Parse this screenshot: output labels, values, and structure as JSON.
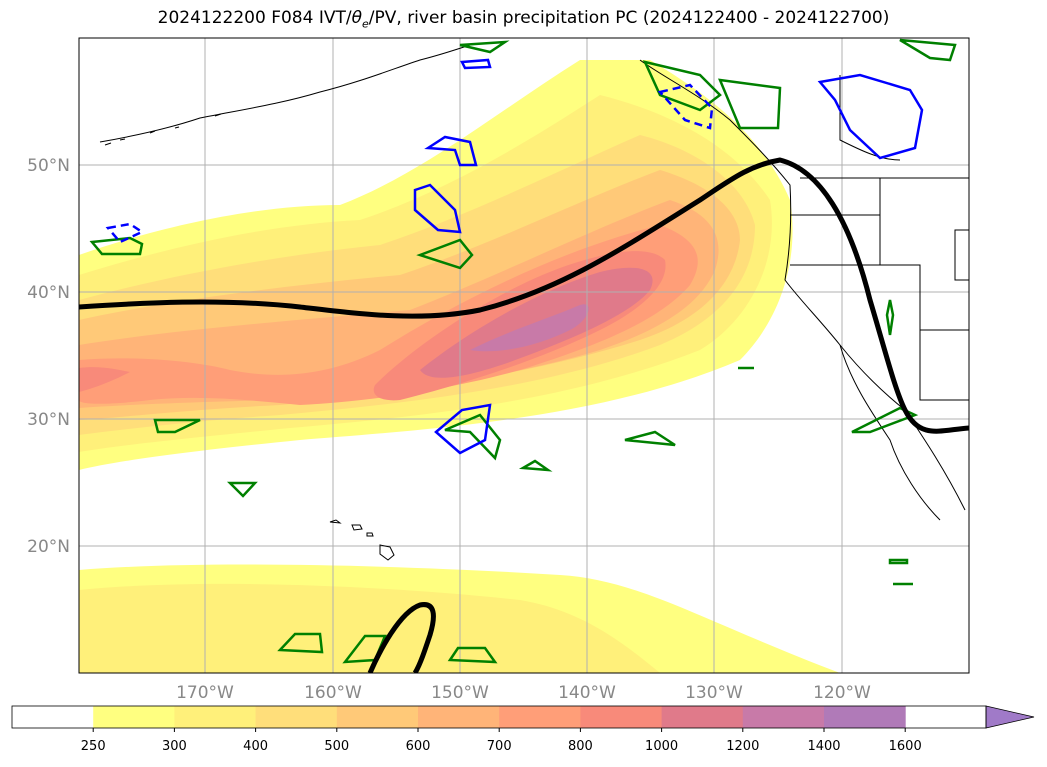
{
  "title": {
    "prefix": "2024122200 F084 IVT/",
    "theta": "θ",
    "subscript": "e",
    "suffix": "/PV, river basin precipitation PC (2024122400 - 2024122700)"
  },
  "map": {
    "latitude_labels": [
      "50°N",
      "40°N",
      "30°N",
      "20°N"
    ],
    "longitude_labels": [
      "170°W",
      "160°W",
      "150°W",
      "140°W",
      "130°W",
      "120°W"
    ]
  },
  "colorbar": {
    "tick_labels": [
      "250",
      "300",
      "400",
      "500",
      "600",
      "700",
      "800",
      "1000",
      "1200",
      "1400",
      "1600"
    ],
    "colors": [
      "#ffffff",
      "#ffff80",
      "#fff07a",
      "#ffde7a",
      "#ffc978",
      "#ffb478",
      "#ff9e78",
      "#f88a7a",
      "#e07a8a",
      "#c87aa8",
      "#b07ab8",
      "#a07ac8"
    ],
    "extend": "max"
  },
  "colors": {
    "theta_e_contour": "#000000",
    "pv_positive": "#008000",
    "pv_negative": "#0000ff",
    "grid": "#b0b0b0",
    "coastline": "#000000"
  }
}
